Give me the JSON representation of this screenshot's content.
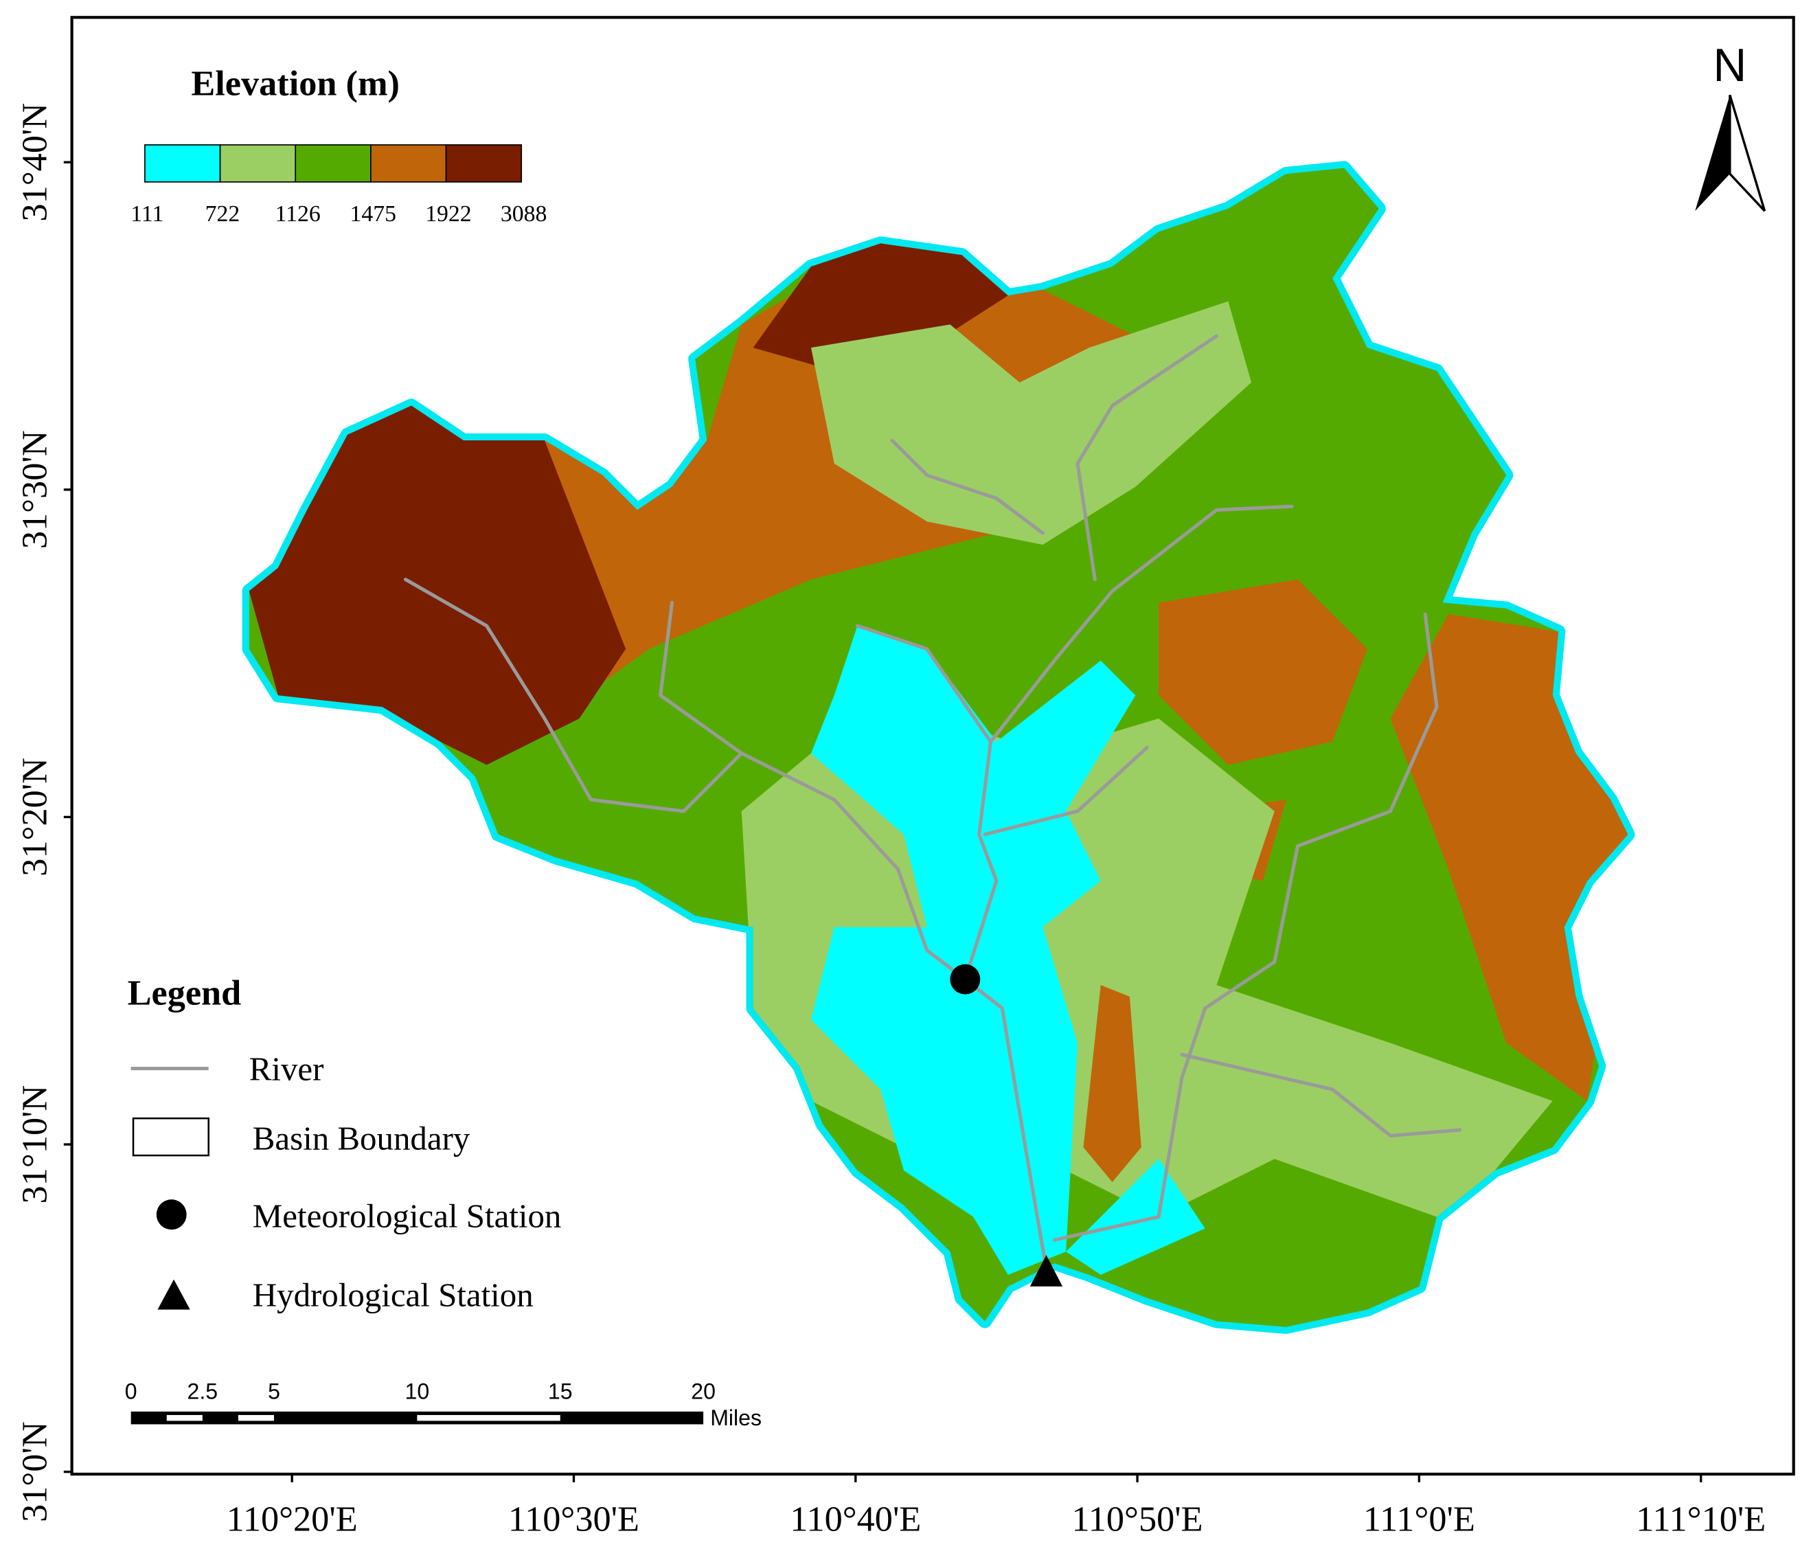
{
  "legend_title": "Elevation (m)",
  "elevation_classes": {
    "colors": [
      "#00ffff",
      "#9ccf63",
      "#55aa00",
      "#c0650a",
      "#7a1e00"
    ],
    "breaks": [
      111,
      722,
      1126,
      1475,
      1922,
      3088
    ]
  },
  "north": "N",
  "latitude_ticks": [
    "31°40'N",
    "31°30'N",
    "31°20'N",
    "31°10'N",
    "31°0'N"
  ],
  "longitude_ticks": [
    "110°20'E",
    "110°30'E",
    "110°40'E",
    "110°50'E",
    "111°0'E",
    "111°10'E"
  ],
  "legend": {
    "title": "Legend",
    "items": [
      "River",
      "Basin Boundary",
      "Meteorological Station",
      "Hydrological Station"
    ]
  },
  "scale_bar": {
    "ticks": [
      0,
      2.5,
      5,
      10,
      15,
      20
    ],
    "unit": "Miles"
  }
}
